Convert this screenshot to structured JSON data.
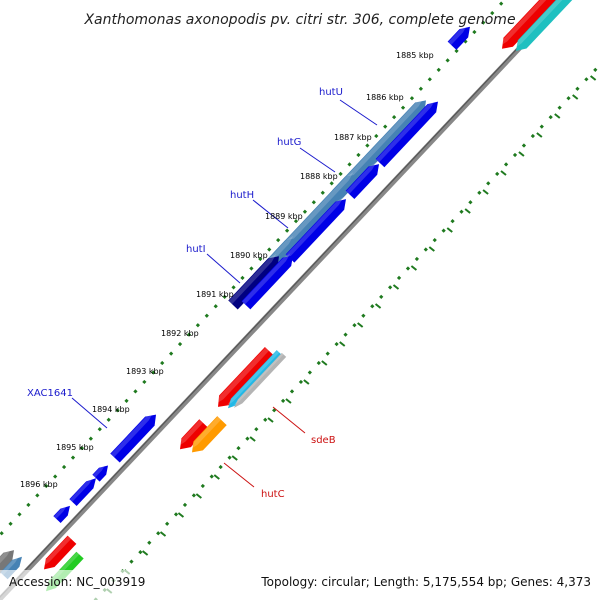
{
  "title": "Xanthomonas axonopodis pv. citri str. 306, complete genome",
  "accession": "Accession: NC_003919",
  "topology": "Topology: circular; Length: 5,175,554 bp; Genes: 4,373",
  "colors": {
    "backbone": "#888888",
    "backbone_shade": "#555555",
    "ruler_dots": "#1f7a1f",
    "ticks": "#1f7a1f",
    "plus_label": "#1a1acc",
    "minus_label": "#cc1111",
    "blue": "#0000e6",
    "steel": "#4682b4",
    "navy": "#000080",
    "red": "#ee0000",
    "cyan": "#22b8e6",
    "teal": "#1fc0c0",
    "gray": "#b4b4b4",
    "orange": "#ff9a00",
    "green": "#22cc22",
    "dark_gray": "#777777"
  },
  "tick_labels": [
    "1885 kbp",
    "1886 kbp",
    "1887 kbp",
    "1888 kbp",
    "1889 kbp",
    "1890 kbp",
    "1891 kbp",
    "1892 kbp",
    "1893 kbp",
    "1894 kbp",
    "1895 kbp",
    "1896 kbp"
  ],
  "gene_labels": [
    {
      "name": "hutU",
      "strand": "plus"
    },
    {
      "name": "hutG",
      "strand": "plus"
    },
    {
      "name": "hutH",
      "strand": "plus"
    },
    {
      "name": "hutI",
      "strand": "plus"
    },
    {
      "name": "XAC1641",
      "strand": "plus"
    },
    {
      "name": "sdeB",
      "strand": "minus"
    },
    {
      "name": "hutC",
      "strand": "minus"
    }
  ]
}
